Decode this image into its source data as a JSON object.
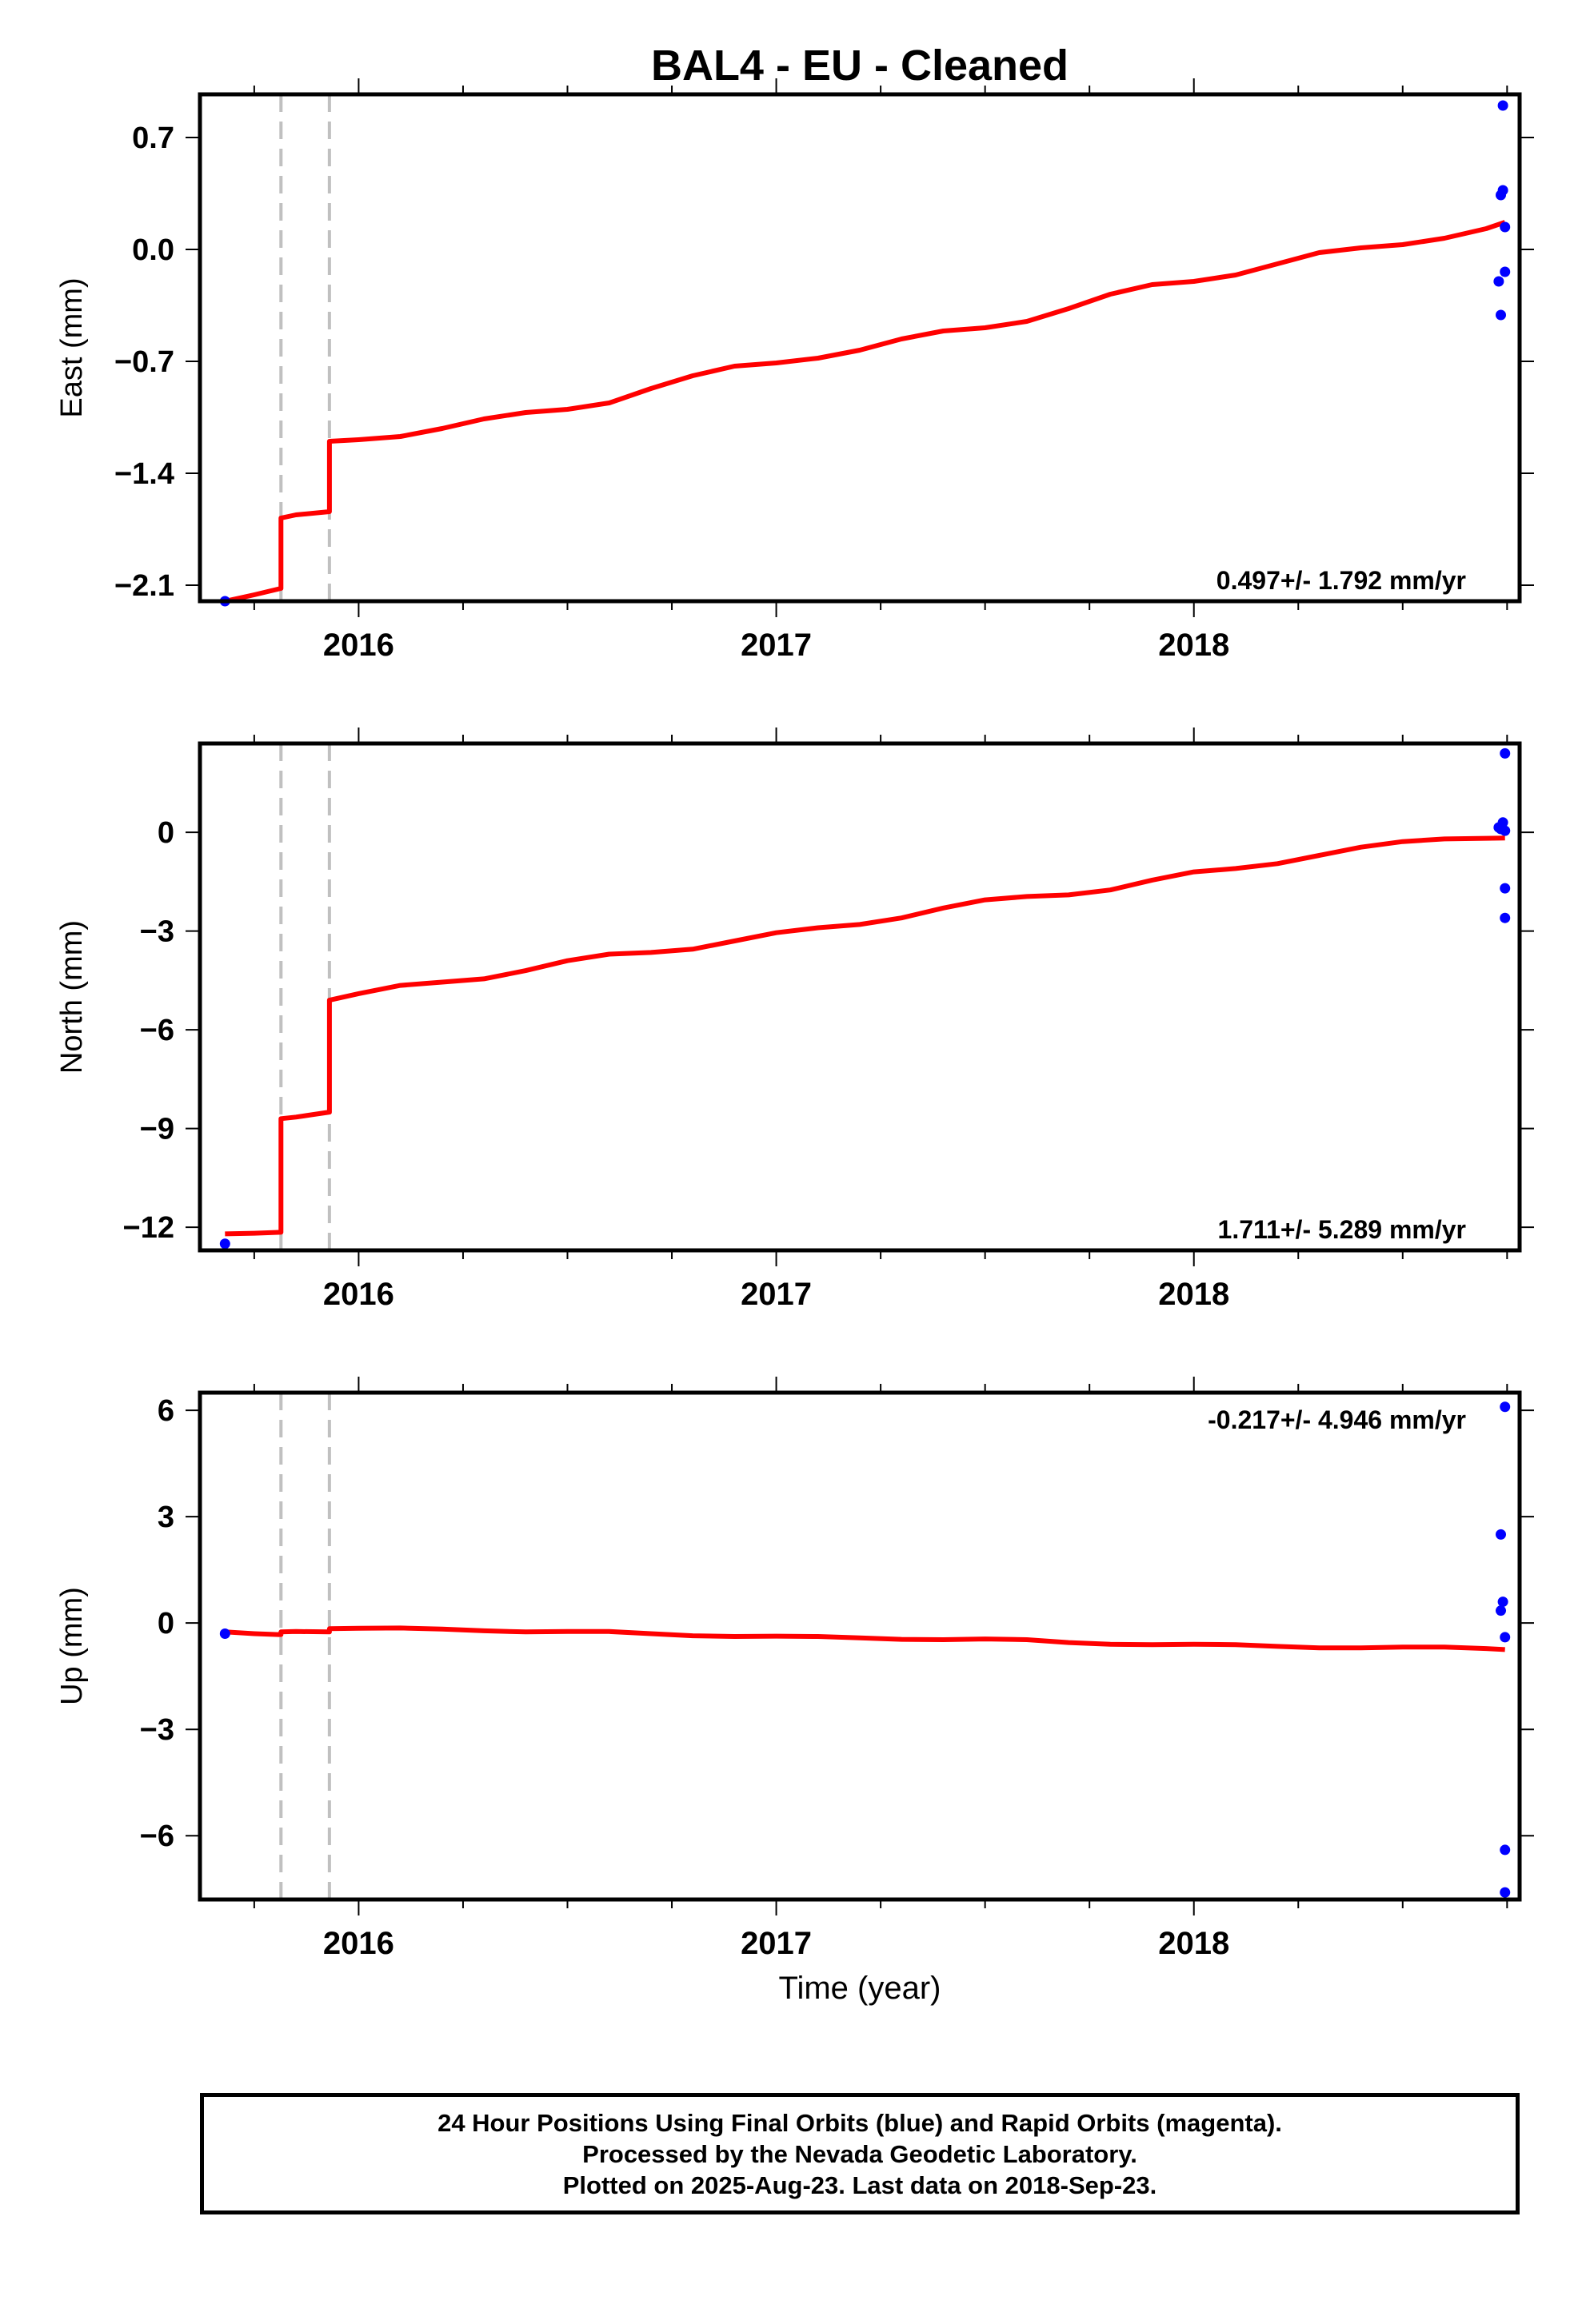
{
  "chart_data": {
    "type": "scatter",
    "title": "BAL4  - EU - Cleaned",
    "xlabel": "Time (year)",
    "xlim": [
      2015.62,
      2018.78
    ],
    "x_ticks": [
      2016,
      2017,
      2018
    ],
    "x_tick_labels": [
      "2016",
      "2017",
      "2018"
    ],
    "x_minor_step": 0.25,
    "vertical_dashed_lines": [
      2015.814,
      2015.93
    ],
    "series_colors": {
      "points": "#0000ff",
      "model": "#ff0000",
      "dashed": "#c0c0c0"
    },
    "panels": [
      {
        "name": "east",
        "ylabel": "East (mm)",
        "ylim": [
          -2.2,
          0.97
        ],
        "y_ticks": [
          0.7,
          0.0,
          -0.7,
          -1.4,
          -2.1
        ],
        "y_tick_labels": [
          "0.7",
          "0.0",
          "−0.7",
          "−1.4",
          "−2.1"
        ],
        "rate_label": "0.497+/- 1.792 mm/yr",
        "rate_label_position": "bottom-right",
        "points": [
          [
            2015.68,
            -2.2
          ],
          [
            2018.74,
            0.9
          ],
          [
            2018.74,
            0.37
          ],
          [
            2018.735,
            0.34
          ],
          [
            2018.745,
            0.14
          ],
          [
            2018.745,
            -0.14
          ],
          [
            2018.73,
            -0.2
          ],
          [
            2018.735,
            -0.41
          ]
        ],
        "model": [
          [
            2015.68,
            -2.2
          ],
          [
            2015.75,
            -2.16
          ],
          [
            2015.814,
            -2.12
          ],
          [
            2015.814,
            -1.68
          ],
          [
            2015.85,
            -1.66
          ],
          [
            2015.93,
            -1.64
          ],
          [
            2015.93,
            -1.2
          ],
          [
            2016.0,
            -1.19
          ],
          [
            2016.1,
            -1.17
          ],
          [
            2016.2,
            -1.12
          ],
          [
            2016.3,
            -1.06
          ],
          [
            2016.4,
            -1.02
          ],
          [
            2016.5,
            -1.0
          ],
          [
            2016.6,
            -0.96
          ],
          [
            2016.7,
            -0.87
          ],
          [
            2016.8,
            -0.79
          ],
          [
            2016.9,
            -0.73
          ],
          [
            2017.0,
            -0.71
          ],
          [
            2017.1,
            -0.68
          ],
          [
            2017.2,
            -0.63
          ],
          [
            2017.3,
            -0.56
          ],
          [
            2017.4,
            -0.51
          ],
          [
            2017.5,
            -0.49
          ],
          [
            2017.6,
            -0.45
          ],
          [
            2017.7,
            -0.37
          ],
          [
            2017.8,
            -0.28
          ],
          [
            2017.9,
            -0.22
          ],
          [
            2018.0,
            -0.2
          ],
          [
            2018.1,
            -0.16
          ],
          [
            2018.2,
            -0.09
          ],
          [
            2018.3,
            -0.02
          ],
          [
            2018.4,
            0.01
          ],
          [
            2018.5,
            0.03
          ],
          [
            2018.6,
            0.07
          ],
          [
            2018.7,
            0.13
          ],
          [
            2018.745,
            0.17
          ]
        ]
      },
      {
        "name": "north",
        "ylabel": "North (mm)",
        "ylim": [
          -12.7,
          2.7
        ],
        "y_ticks": [
          0,
          -3,
          -6,
          -9,
          -12
        ],
        "y_tick_labels": [
          "0",
          "−3",
          "−6",
          "−9",
          "−12"
        ],
        "rate_label": "1.711+/- 5.289 mm/yr",
        "rate_label_position": "bottom-right",
        "points": [
          [
            2015.68,
            -12.5
          ],
          [
            2018.745,
            2.4
          ],
          [
            2018.74,
            0.3
          ],
          [
            2018.73,
            0.15
          ],
          [
            2018.735,
            0.1
          ],
          [
            2018.745,
            0.05
          ],
          [
            2018.745,
            -1.7
          ],
          [
            2018.745,
            -2.6
          ]
        ],
        "model": [
          [
            2015.68,
            -12.2
          ],
          [
            2015.75,
            -12.18
          ],
          [
            2015.814,
            -12.15
          ],
          [
            2015.814,
            -8.7
          ],
          [
            2015.85,
            -8.65
          ],
          [
            2015.93,
            -8.5
          ],
          [
            2015.93,
            -5.1
          ],
          [
            2016.0,
            -4.9
          ],
          [
            2016.1,
            -4.65
          ],
          [
            2016.2,
            -4.55
          ],
          [
            2016.3,
            -4.45
          ],
          [
            2016.4,
            -4.2
          ],
          [
            2016.5,
            -3.9
          ],
          [
            2016.6,
            -3.7
          ],
          [
            2016.7,
            -3.65
          ],
          [
            2016.8,
            -3.55
          ],
          [
            2016.9,
            -3.3
          ],
          [
            2017.0,
            -3.05
          ],
          [
            2017.1,
            -2.9
          ],
          [
            2017.2,
            -2.8
          ],
          [
            2017.3,
            -2.6
          ],
          [
            2017.4,
            -2.3
          ],
          [
            2017.5,
            -2.05
          ],
          [
            2017.6,
            -1.95
          ],
          [
            2017.7,
            -1.9
          ],
          [
            2017.8,
            -1.75
          ],
          [
            2017.9,
            -1.45
          ],
          [
            2018.0,
            -1.2
          ],
          [
            2018.1,
            -1.1
          ],
          [
            2018.2,
            -0.95
          ],
          [
            2018.3,
            -0.7
          ],
          [
            2018.4,
            -0.45
          ],
          [
            2018.5,
            -0.28
          ],
          [
            2018.6,
            -0.2
          ],
          [
            2018.7,
            -0.18
          ],
          [
            2018.745,
            -0.17
          ]
        ]
      },
      {
        "name": "up",
        "ylabel": "Up (mm)",
        "ylim": [
          -7.8,
          6.5
        ],
        "y_ticks": [
          6,
          3,
          0,
          -3,
          -6
        ],
        "y_tick_labels": [
          "6",
          "3",
          "0",
          "−3",
          "−6"
        ],
        "rate_label": "-0.217+/- 4.946 mm/yr",
        "rate_label_position": "top-right",
        "points": [
          [
            2015.68,
            -0.3
          ],
          [
            2018.745,
            6.1
          ],
          [
            2018.735,
            2.5
          ],
          [
            2018.74,
            0.6
          ],
          [
            2018.735,
            0.35
          ],
          [
            2018.745,
            -0.4
          ],
          [
            2018.745,
            -6.4
          ],
          [
            2018.745,
            -7.6
          ]
        ],
        "model": [
          [
            2015.68,
            -0.25
          ],
          [
            2015.75,
            -0.3
          ],
          [
            2015.814,
            -0.33
          ],
          [
            2015.814,
            -0.25
          ],
          [
            2015.85,
            -0.24
          ],
          [
            2015.93,
            -0.25
          ],
          [
            2015.93,
            -0.16
          ],
          [
            2016.0,
            -0.15
          ],
          [
            2016.1,
            -0.14
          ],
          [
            2016.2,
            -0.17
          ],
          [
            2016.3,
            -0.22
          ],
          [
            2016.4,
            -0.25
          ],
          [
            2016.5,
            -0.24
          ],
          [
            2016.6,
            -0.24
          ],
          [
            2016.7,
            -0.3
          ],
          [
            2016.8,
            -0.36
          ],
          [
            2016.9,
            -0.38
          ],
          [
            2017.0,
            -0.37
          ],
          [
            2017.1,
            -0.38
          ],
          [
            2017.2,
            -0.42
          ],
          [
            2017.3,
            -0.46
          ],
          [
            2017.4,
            -0.47
          ],
          [
            2017.5,
            -0.45
          ],
          [
            2017.6,
            -0.47
          ],
          [
            2017.7,
            -0.55
          ],
          [
            2017.8,
            -0.6
          ],
          [
            2017.9,
            -0.61
          ],
          [
            2018.0,
            -0.6
          ],
          [
            2018.1,
            -0.61
          ],
          [
            2018.2,
            -0.66
          ],
          [
            2018.3,
            -0.7
          ],
          [
            2018.4,
            -0.7
          ],
          [
            2018.5,
            -0.68
          ],
          [
            2018.6,
            -0.68
          ],
          [
            2018.7,
            -0.72
          ],
          [
            2018.745,
            -0.75
          ]
        ]
      }
    ]
  },
  "footer": {
    "line1": "24 Hour Positions Using Final Orbits (blue) and Rapid Orbits (magenta).",
    "line2": "Processed by the Nevada Geodetic Laboratory.",
    "line3": "Plotted on 2025-Aug-23. Last data on 2018-Sep-23."
  }
}
